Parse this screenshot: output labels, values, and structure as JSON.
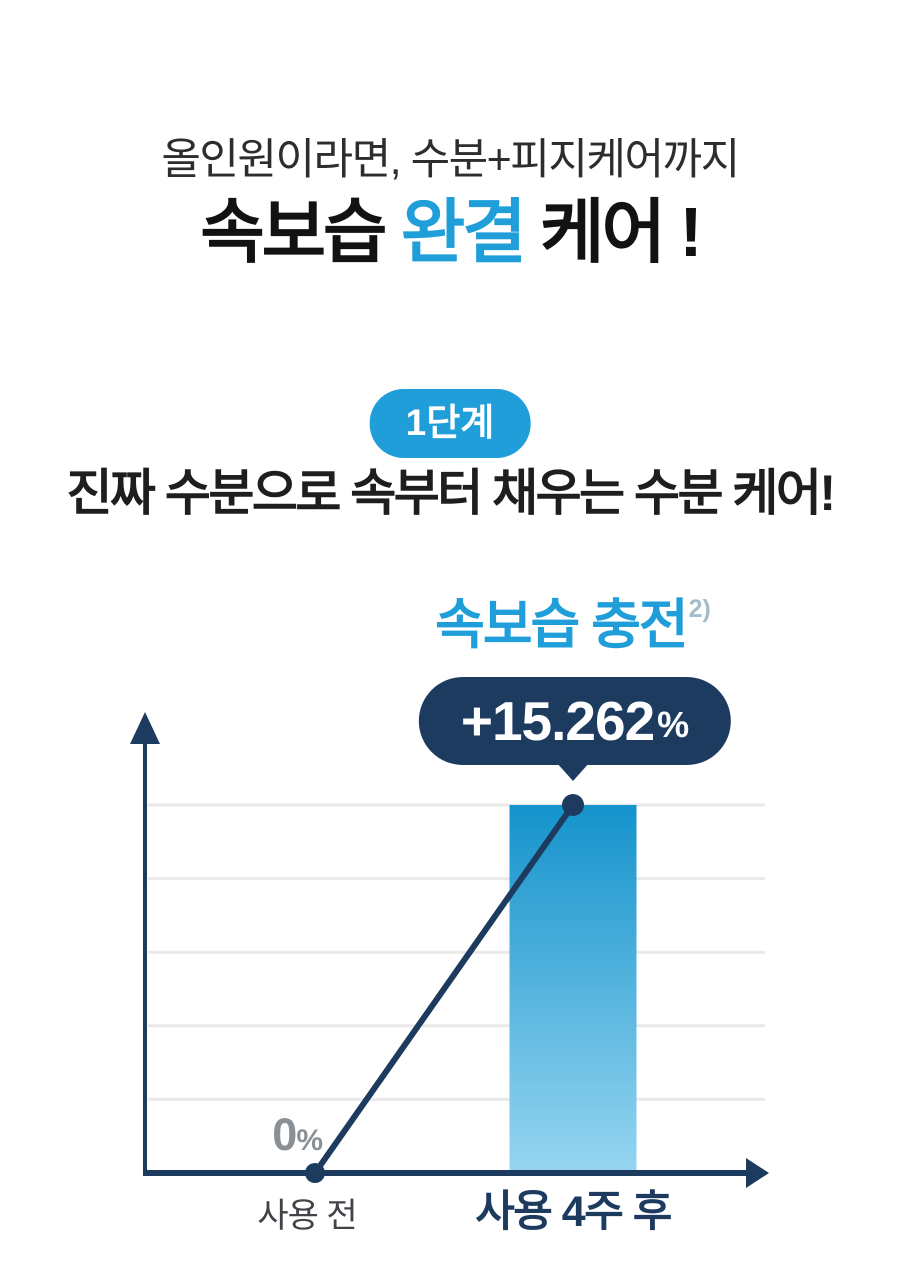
{
  "page": {
    "background": "#ffffff",
    "accent_blue": "#209ed9",
    "navy": "#1d3a5f"
  },
  "header": {
    "eyebrow": "올인원이라면, 수분+피지케어까지",
    "title": {
      "pre": "속보습 ",
      "highlight": "완결",
      "post": " 케어 !"
    }
  },
  "step": {
    "badge_label": "1단계",
    "subtitle": "진짜 수분으로 속부터 채우는 수분 케어!"
  },
  "chart": {
    "title": "속보습 충전",
    "title_superscript": "2)",
    "bubble": {
      "value": "+15.262",
      "unit": "%"
    },
    "baseline_label": {
      "value": "0",
      "unit": "%"
    },
    "x_axis_labels": {
      "before": "사용 전",
      "after": "사용 4주 후"
    }
  },
  "chart_data": {
    "type": "bar",
    "categories": [
      "사용 전",
      "사용 4주 후"
    ],
    "values": [
      0,
      15.262
    ],
    "value_unit": "%",
    "title": "속보습 충전",
    "title_superscript": "2)",
    "annotation": "+15.262%",
    "annotation_target": "사용 4주 후",
    "baseline_annotation": "0%",
    "xlabel": "",
    "ylabel": "",
    "ylim": [
      0,
      15.262
    ],
    "gridline_count": 5,
    "grid": true,
    "legend": false,
    "overlay": "line from baseline point to bar top with navy dots at both ends",
    "colors": {
      "bar_gradient_top": "#1593cc",
      "bar_gradient_bottom": "#96d5f0",
      "axis": "#1d3a5f",
      "line": "#1d3a5f",
      "dot": "#1d3a5f",
      "grid": "#e9e9e9"
    }
  }
}
